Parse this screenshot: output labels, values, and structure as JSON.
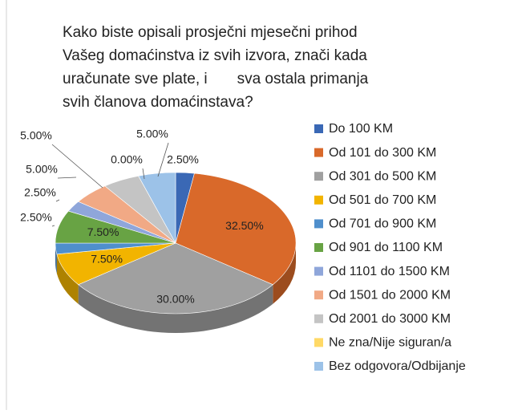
{
  "chart_data": {
    "type": "pie",
    "title": [
      "Kako biste opisali prosječni mjesečni prihod",
      "Vašeg domaćinstva iz svih izvora, znači kada",
      "uračunate sve plate, i       sva ostala primanja",
      "svih članova domaćinstava?"
    ],
    "categories": [
      "Do 100 KM",
      "Od 101 do 300 KM",
      "Od 301 do 500 KM",
      "Od 501 do 700 KM",
      "Od 701 do 900 KM",
      "Od 901 do 1100 KM",
      "Od 1101 do 1500 KM",
      "Od 1501 do 2000 KM",
      "Od 2001 do 3000 KM",
      "Ne zna/Nije siguran/a",
      "Bez odgovora/Odbijanje"
    ],
    "values": [
      2.5,
      32.5,
      30,
      7.5,
      2.5,
      7.5,
      2.5,
      5,
      5,
      0,
      5
    ],
    "value_labels": [
      "2.50%",
      "32.50%",
      "30.00%",
      "7.50%",
      "2.50%",
      "7.50%",
      "2.50%",
      "5.00%",
      "5.00%",
      "0.00%",
      "5.00%"
    ],
    "colors": [
      "#3a68b5",
      "#d9692a",
      "#a0a0a0",
      "#f2b400",
      "#4f8fcc",
      "#68a344",
      "#8fa6da",
      "#f1a985",
      "#c4c4c4",
      "#ffd966",
      "#9cc2e8"
    ],
    "legend": "right"
  }
}
